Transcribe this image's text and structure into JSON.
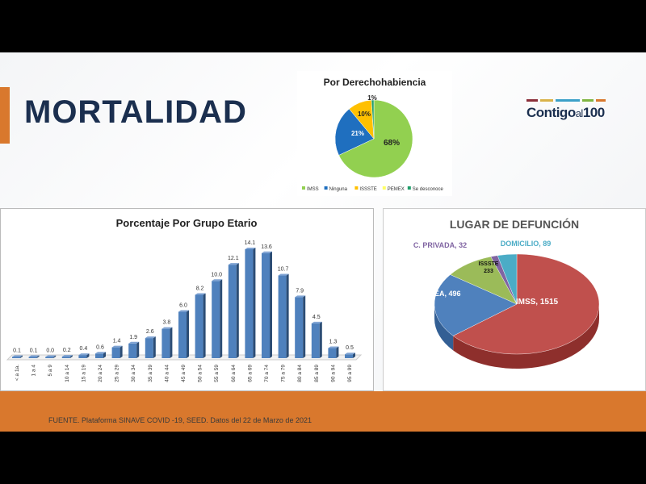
{
  "title": "MORTALIDAD",
  "logo": {
    "text_main": "Contigo",
    "text_small": "al",
    "text_num": "100",
    "colors": [
      "#8b2f3a",
      "#d9b24a",
      "#3ca0c8",
      "#7fb542",
      "#d9782d"
    ]
  },
  "footer": {
    "source": "FUENTE. Plataforma SINAVE COVID -19, SEED. Datos del 22 de Marzo de 2021"
  },
  "chart_data": [
    {
      "type": "pie",
      "title": "Por Derechohabiencia",
      "categories": [
        "IMSS",
        "Ninguna",
        "ISSSTE",
        "PEMEX",
        "Se desconoce"
      ],
      "values": [
        68,
        21,
        10,
        0,
        1
      ],
      "labels": [
        "68%",
        "21%",
        "10%",
        "",
        "1%"
      ],
      "colors": [
        "#92d050",
        "#1f6fbf",
        "#ffc000",
        "#ffff66",
        "#1e9e6a"
      ],
      "legend": "bottom"
    },
    {
      "type": "bar",
      "title": "Porcentaje Por Grupo Etario",
      "categories": [
        "< a 1a.",
        "1 a 4",
        "5 a 9",
        "10 a 14",
        "15 a 19",
        "20 a 24",
        "25 a 29",
        "30 a 34",
        "35 a 39",
        "40 a 44",
        "45 a 49",
        "50 a 54",
        "55 a 59",
        "60 a 64",
        "65 a 69",
        "70 a 74",
        "75 a 79",
        "80 a 84",
        "85 a 89",
        "90 a 94",
        "95 a 99"
      ],
      "values": [
        0.1,
        0.1,
        0.0,
        0.2,
        0.4,
        0.6,
        1.4,
        1.9,
        2.6,
        3.8,
        6.0,
        8.2,
        10.0,
        12.1,
        14.1,
        13.6,
        10.7,
        7.9,
        4.5,
        1.3,
        0.5
      ],
      "labels": [
        "0.1",
        "0.1",
        "0.0",
        "0.2",
        "0.4",
        "0.6",
        "1.4",
        "1.9",
        "2.6",
        "3.8",
        "6.0",
        "8.2",
        "10.0",
        "12.1",
        "14.1",
        "13.6",
        "10.7",
        "7.9",
        "4.5",
        "1.3",
        "0.5"
      ],
      "ylim": [
        0,
        15
      ],
      "color": "#4f81bd"
    },
    {
      "type": "pie",
      "title": "LUGAR DE DEFUNCIÓN",
      "categories": [
        "IMSS",
        "ISSEA",
        "ISSSTE",
        "C. PRIVADA",
        "DOMICILIO"
      ],
      "values": [
        1515,
        496,
        233,
        32,
        89
      ],
      "labels": [
        "IMSS, 1515",
        "ISSEA, 496",
        "ISSSTE 233",
        "C. PRIVADA, 32",
        "DOMICILIO, 89"
      ],
      "colors": [
        "#c0504d",
        "#4f81bd",
        "#9bbb59",
        "#8064a2",
        "#4bacc6"
      ]
    }
  ]
}
